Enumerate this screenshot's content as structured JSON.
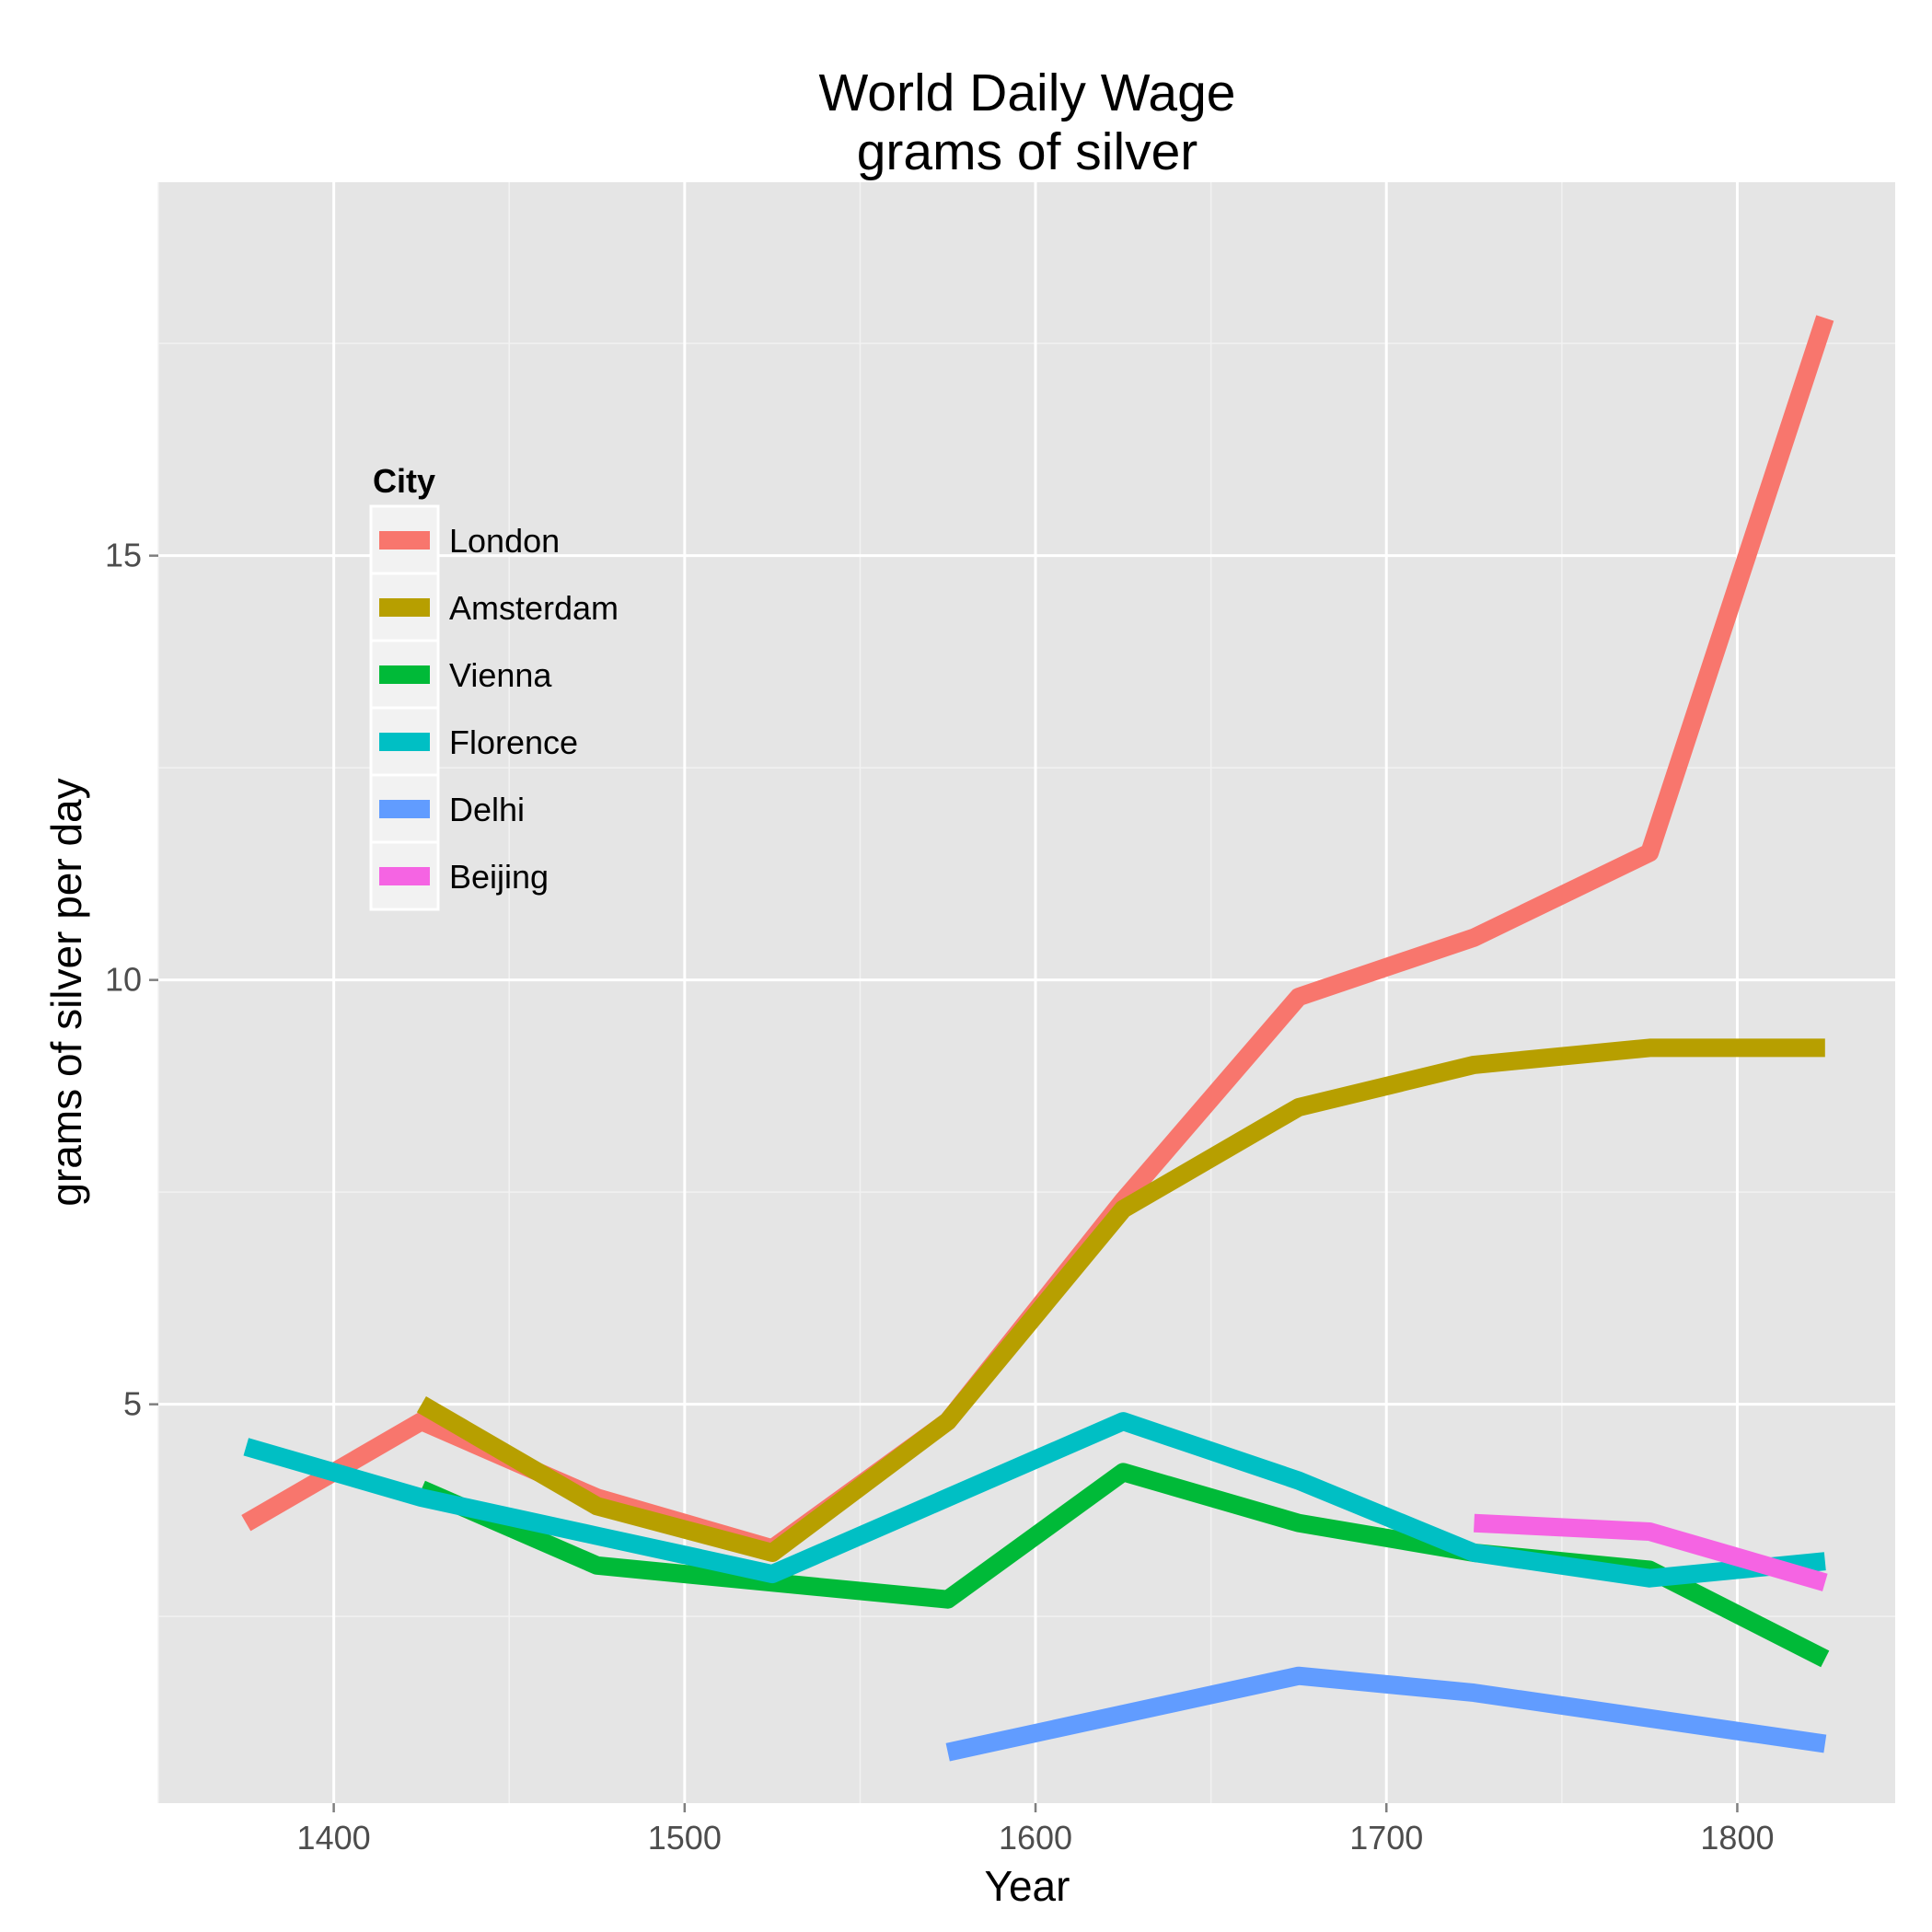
{
  "chart_data": {
    "type": "line",
    "title": [
      "World Daily Wage",
      "grams of silver"
    ],
    "xlabel": "Year",
    "ylabel": "grams of silver per day",
    "xlim": [
      1350,
      1845
    ],
    "ylim": [
      0.3,
      19.4
    ],
    "x_ticks": [
      1400,
      1500,
      1600,
      1700,
      1800
    ],
    "y_ticks": [
      5,
      10,
      15
    ],
    "grid": true,
    "background": "#e5e5e5",
    "legend": {
      "title": "City",
      "placement": "top-left inside"
    },
    "series": [
      {
        "name": "London",
        "color": "#f8766d",
        "x": [
          1375,
          1425,
          1475,
          1525,
          1575,
          1625,
          1675,
          1725,
          1775,
          1825
        ],
        "y": [
          3.6,
          4.8,
          3.9,
          3.3,
          4.8,
          7.4,
          9.8,
          10.5,
          11.5,
          17.8
        ]
      },
      {
        "name": "Amsterdam",
        "color": "#b79f00",
        "x": [
          1425,
          1475,
          1525,
          1575,
          1625,
          1675,
          1725,
          1775,
          1825
        ],
        "y": [
          5.0,
          3.8,
          3.25,
          4.8,
          7.3,
          8.5,
          9.0,
          9.2,
          9.2
        ]
      },
      {
        "name": "Vienna",
        "color": "#00ba38",
        "x": [
          1425,
          1475,
          1525,
          1575,
          1625,
          1675,
          1725,
          1775,
          1825
        ],
        "y": [
          4.0,
          3.1,
          2.9,
          2.7,
          4.2,
          3.6,
          3.25,
          3.05,
          2.0
        ]
      },
      {
        "name": "Florence",
        "color": "#00bfc4",
        "x": [
          1375,
          1425,
          1475,
          1525,
          1575,
          1625,
          1675,
          1725,
          1775,
          1825
        ],
        "y": [
          4.5,
          3.9,
          3.45,
          3.0,
          3.9,
          4.8,
          4.1,
          3.25,
          2.95,
          3.15
        ]
      },
      {
        "name": "Delhi",
        "color": "#619cff",
        "x": [
          1575,
          1625,
          1675,
          1725,
          1775,
          1825
        ],
        "y": [
          0.9,
          1.35,
          1.8,
          1.6,
          1.3,
          1.0
        ]
      },
      {
        "name": "Beijing",
        "color": "#f564e3",
        "x": [
          1725,
          1775,
          1825
        ],
        "y": [
          3.6,
          3.5,
          2.9
        ]
      }
    ]
  }
}
